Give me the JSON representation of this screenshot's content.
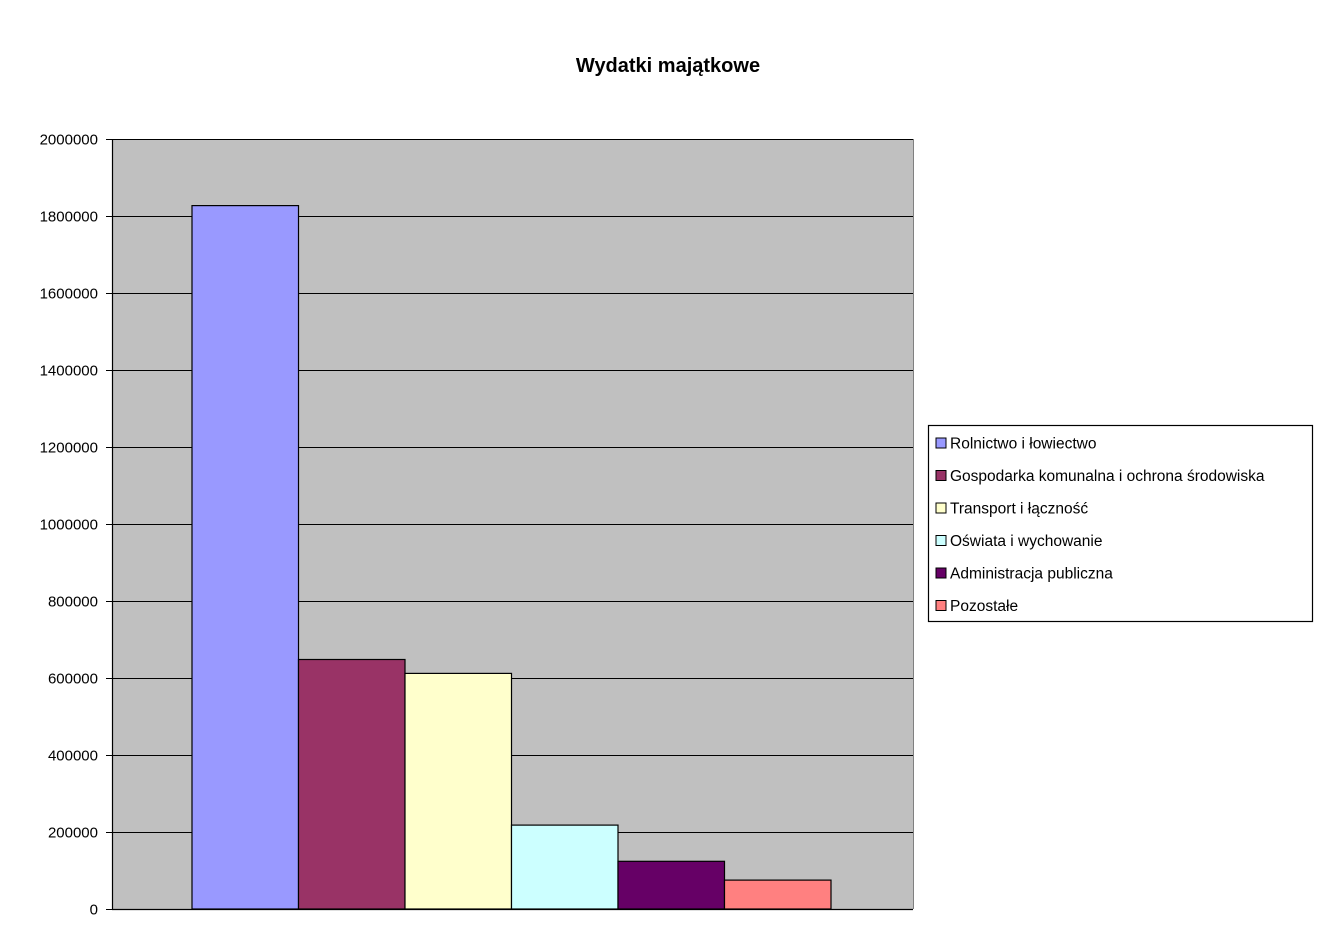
{
  "chart_data": {
    "type": "bar",
    "title": "Wydatki majątkowe",
    "xlabel": "",
    "ylabel": "",
    "ylim": [
      0,
      2000000
    ],
    "yticks": [
      0,
      200000,
      400000,
      600000,
      800000,
      1000000,
      1200000,
      1400000,
      1600000,
      1800000,
      2000000
    ],
    "grid": true,
    "legend_position": "right",
    "plot_background": "#c0c0c0",
    "series": [
      {
        "name": "Rolnictwo i łowiectwo",
        "values": [
          1827000
        ],
        "color": "#9999ff"
      },
      {
        "name": "Gospodarka komunalna i ochrona środowiska",
        "values": [
          648000
        ],
        "color": "#993366"
      },
      {
        "name": "Transport i łączność",
        "values": [
          612000
        ],
        "color": "#ffffcc"
      },
      {
        "name": "Oświata i wychowanie",
        "values": [
          218000
        ],
        "color": "#ccffff"
      },
      {
        "name": "Administracja publiczna",
        "values": [
          124000
        ],
        "color": "#660066"
      },
      {
        "name": "Pozostałe",
        "values": [
          75000
        ],
        "color": "#ff8080"
      }
    ]
  }
}
